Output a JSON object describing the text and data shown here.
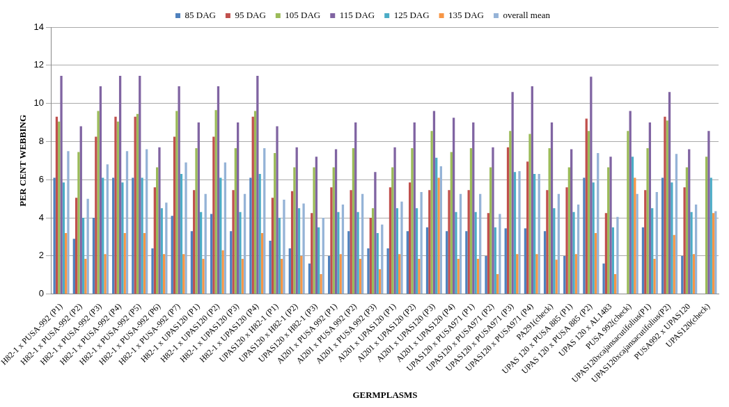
{
  "chart_data": {
    "type": "bar",
    "xlabel": "GERMPLASMS",
    "ylabel": "PER CENT WEBBING",
    "categories": [
      "H82-1 x PUSA-992 (P1)",
      "H82-1 x PUSA-992 (P2)",
      "H82-1 x PUSA-992 (P3)",
      "H82-1 x PUSA-992 (P4)",
      "H82-1 x PUSA-992 (P5)",
      "H82-1 x PUSA-992 (P6)",
      "H82-1 x PUSA-992 (P7)",
      "H82-1 x UPAS120 (P1)",
      "H82-1 x UPAS120 (P2)",
      "H82-1 x UPAS120 (P3)",
      "H82-1 x UPAS120 (P4)",
      "UPAS120 x H82-1 (P1)",
      "UPAS120 x H82-1 (P2)",
      "UPAS120 x H82-1 (P3)",
      "Al201 x PUSA 992 (P1)",
      "Al201 x PUSA 992 (P2)",
      "Al201 x PUSA 992 (P3)",
      "Al201 x UPAS120 (P1)",
      "Al201 x UPAS120 (P2)",
      "Al201 x UPAS120 (P3)",
      "Al201 x UPAS120 (P4)",
      "UPAS120 x PUSA971 (P1)",
      "UPAS120 x PUSA971 (P2)",
      "UPAS120 x PUSA971 (P3)",
      "UPAS120 x PUSA971 (P4)",
      "PA291(check)",
      "UPAS 120 x PUSA 885 (P1)",
      "UPAS 120 x PUSA 885 (P2)",
      "UPAS 120 x AL1483",
      "PUSA 992(check)",
      "UPAS120xcajansacutifolius(P1)",
      "UPAS120xcajansacutifolius(P2)",
      "PUSA992 x UPAS120",
      "UPAS120(check)"
    ],
    "series": [
      {
        "name": "85 DAG",
        "color": "#4f81bd",
        "values": [
          6.1,
          2.9,
          4.0,
          6.1,
          6.1,
          2.4,
          4.1,
          3.3,
          4.2,
          3.3,
          6.1,
          2.8,
          2.4,
          1.6,
          2.0,
          3.3,
          2.4,
          2.4,
          3.3,
          3.5,
          3.3,
          3.3,
          2.0,
          3.45,
          3.45,
          3.3,
          2.0,
          6.1,
          1.6,
          null,
          3.5,
          6.1,
          2.0,
          null
        ]
      },
      {
        "name": "95 DAG",
        "color": "#c0504d",
        "values": [
          9.3,
          5.05,
          8.25,
          9.3,
          9.3,
          5.6,
          8.25,
          5.45,
          8.25,
          5.45,
          9.3,
          5.05,
          5.4,
          4.25,
          5.6,
          5.45,
          4.0,
          5.6,
          5.85,
          5.45,
          5.45,
          5.45,
          4.25,
          7.7,
          6.95,
          5.45,
          5.6,
          9.2,
          4.25,
          null,
          5.45,
          9.3,
          5.6,
          null
        ]
      },
      {
        "name": "105 DAG",
        "color": "#9bbb59",
        "values": [
          9.05,
          7.45,
          9.6,
          9.05,
          9.45,
          6.65,
          9.6,
          7.65,
          9.65,
          7.65,
          9.6,
          7.4,
          6.65,
          6.65,
          6.65,
          7.65,
          4.5,
          6.65,
          7.65,
          8.55,
          7.45,
          7.65,
          6.65,
          8.55,
          8.4,
          7.65,
          6.65,
          8.55,
          6.65,
          8.55,
          7.65,
          9.1,
          6.65,
          7.2
        ]
      },
      {
        "name": "115 DAG",
        "color": "#8064a2",
        "values": [
          11.45,
          8.8,
          10.9,
          11.45,
          11.45,
          7.7,
          10.9,
          9.0,
          10.9,
          9.0,
          11.45,
          8.8,
          7.7,
          7.2,
          7.6,
          9.0,
          6.4,
          7.7,
          9.0,
          9.6,
          9.25,
          9.0,
          7.7,
          10.6,
          10.9,
          9.0,
          7.6,
          11.4,
          7.2,
          9.6,
          9.0,
          10.6,
          7.6,
          8.55
        ]
      },
      {
        "name": "125 DAG",
        "color": "#4bacc6",
        "values": [
          5.85,
          4.0,
          6.1,
          5.85,
          6.1,
          4.5,
          6.3,
          4.3,
          6.1,
          4.3,
          6.3,
          4.0,
          4.5,
          3.5,
          4.3,
          4.3,
          3.2,
          4.5,
          4.5,
          7.15,
          4.3,
          4.3,
          3.5,
          6.4,
          6.3,
          4.5,
          4.3,
          5.85,
          3.5,
          7.2,
          4.5,
          5.85,
          4.3,
          6.1
        ]
      },
      {
        "name": "135 DAG",
        "color": "#f79646",
        "values": [
          3.2,
          1.85,
          2.1,
          3.2,
          3.2,
          2.1,
          2.1,
          1.85,
          2.3,
          1.85,
          3.2,
          1.85,
          2.0,
          1.05,
          2.1,
          1.85,
          1.3,
          2.1,
          1.85,
          6.1,
          1.85,
          1.85,
          1.05,
          2.1,
          2.1,
          1.8,
          2.1,
          3.2,
          1.05,
          6.1,
          1.85,
          3.1,
          2.1,
          4.25
        ]
      },
      {
        "name": "overall mean",
        "color": "#95b3d7",
        "values": [
          7.5,
          5.0,
          6.8,
          7.5,
          7.6,
          4.8,
          6.9,
          5.25,
          6.9,
          5.25,
          7.65,
          4.95,
          4.75,
          4.0,
          4.7,
          5.25,
          3.65,
          4.85,
          5.35,
          6.7,
          5.25,
          5.25,
          4.2,
          6.45,
          6.3,
          5.25,
          4.7,
          7.4,
          4.05,
          5.25,
          5.35,
          7.35,
          4.7,
          4.35
        ]
      }
    ],
    "ylim": [
      0,
      14
    ],
    "yticks": [
      0,
      2,
      4,
      6,
      8,
      10,
      12,
      14
    ],
    "grid": "y",
    "legend": "top"
  }
}
